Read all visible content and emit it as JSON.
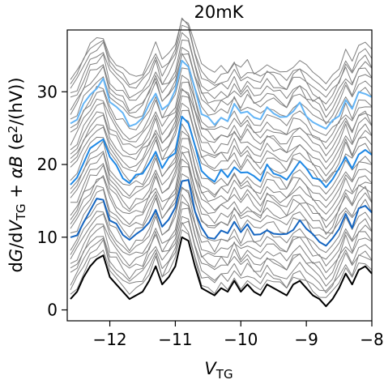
{
  "chart_data": {
    "type": "line",
    "title": "20mK",
    "xlabel_main": "V",
    "xlabel_sub": "TG",
    "ylabel_parts": [
      {
        "t": "d"
      },
      {
        "t": "G",
        "italic": true
      },
      {
        "t": "/d"
      },
      {
        "t": "V",
        "italic": true
      },
      {
        "t": "TG",
        "sub": true
      },
      {
        "t": " + "
      },
      {
        "t": "α",
        "italic": true
      },
      {
        "t": "B",
        "italic": true
      },
      {
        "t": " (e"
      },
      {
        "t": "2",
        "sup": true
      },
      {
        "t": "/(hV))"
      }
    ],
    "xlim": [
      -12.65,
      -8.0
    ],
    "ylim": [
      -1.5,
      38.5
    ],
    "x_ticks": [
      -12,
      -11,
      -10,
      -9,
      -8
    ],
    "x_tick_labels": [
      "−12",
      "−11",
      "−10",
      "−9",
      "−8"
    ],
    "y_ticks": [
      0,
      10,
      20,
      30
    ],
    "y_tick_labels": [
      "0",
      "10",
      "20",
      "30"
    ],
    "grid": false,
    "trace_offsets": [
      0.0,
      0.8,
      1.6,
      2.4,
      3.2,
      4.0,
      4.8,
      5.6,
      6.4,
      7.2,
      8.0,
      8.8,
      9.6,
      10.4,
      11.2,
      12.0,
      12.8,
      13.6,
      14.4,
      15.2,
      16.0,
      16.8,
      17.6,
      18.4,
      19.2,
      20.0,
      20.8,
      21.6,
      22.4,
      23.2,
      24.0,
      24.8,
      25.6,
      26.4,
      27.2,
      28.0,
      28.8,
      29.6,
      30.4
    ],
    "highlight_traces": [
      {
        "index": 0,
        "color": "#000000"
      },
      {
        "index": 10,
        "color": "#1565c0"
      },
      {
        "index": 20,
        "color": "#1e88e5"
      },
      {
        "index": 30,
        "color": "#64b5f6"
      }
    ],
    "trace_color": "#808080",
    "base_trace": {
      "x": [
        -12.6,
        -12.5,
        -12.4,
        -12.3,
        -12.2,
        -12.1,
        -12.0,
        -11.9,
        -11.8,
        -11.7,
        -11.6,
        -11.5,
        -11.4,
        -11.3,
        -11.2,
        -11.1,
        -11.0,
        -10.9,
        -10.8,
        -10.7,
        -10.6,
        -10.5,
        -10.4,
        -10.3,
        -10.2,
        -10.1,
        -10.0,
        -9.9,
        -9.8,
        -9.7,
        -9.6,
        -9.5,
        -9.4,
        -9.3,
        -9.2,
        -9.1,
        -9.0,
        -8.9,
        -8.8,
        -8.7,
        -8.6,
        -8.5,
        -8.4,
        -8.3,
        -8.2,
        -8.1,
        -8.0
      ],
      "y": [
        1.5,
        2.5,
        4.5,
        6.0,
        7.0,
        7.5,
        4.5,
        3.5,
        2.5,
        1.5,
        2.0,
        2.5,
        4.0,
        6.0,
        3.5,
        4.5,
        6.0,
        10.0,
        9.5,
        6.0,
        3.0,
        2.5,
        2.0,
        3.0,
        2.5,
        4.0,
        2.5,
        3.5,
        2.5,
        2.0,
        3.5,
        3.0,
        2.5,
        2.0,
        3.5,
        4.0,
        3.0,
        2.0,
        1.5,
        0.5,
        1.5,
        3.0,
        5.0,
        3.5,
        5.5,
        6.0,
        5.0
      ]
    }
  }
}
